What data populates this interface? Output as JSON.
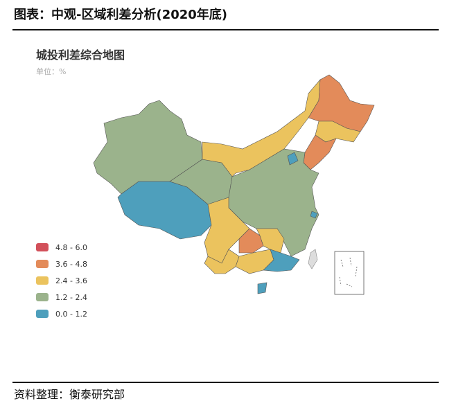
{
  "header": {
    "title": "图表：中观-区域利差分析(2020年底)"
  },
  "map": {
    "title": "城投利差综合地图",
    "subtitle": "单位：%",
    "legend": [
      {
        "label": "4.8 - 6.0",
        "color": "#d2505a"
      },
      {
        "label": "3.6 - 4.8",
        "color": "#e38b5a"
      },
      {
        "label": "2.4 - 3.6",
        "color": "#ebc35e"
      },
      {
        "label": "1.2 - 2.4",
        "color": "#9bb38c"
      },
      {
        "label": "0.0 - 1.2",
        "color": "#4e9fbc"
      }
    ]
  },
  "footer": {
    "source": "资料整理：衡泰研究部"
  }
}
